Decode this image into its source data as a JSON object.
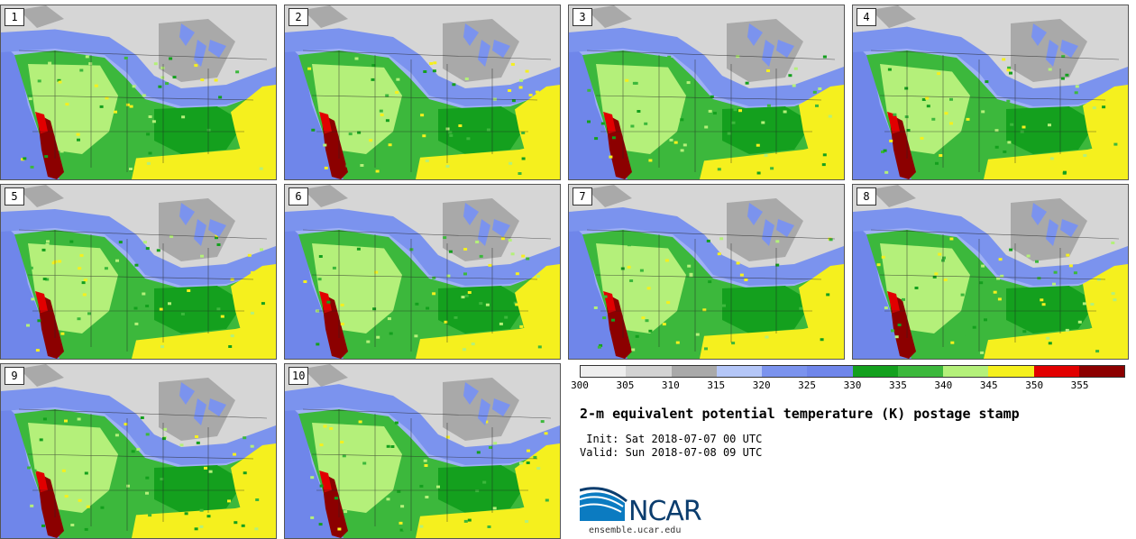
{
  "stamps": [
    {
      "label": "1"
    },
    {
      "label": "2"
    },
    {
      "label": "3"
    },
    {
      "label": "4"
    },
    {
      "label": "5"
    },
    {
      "label": "6"
    },
    {
      "label": "7"
    },
    {
      "label": "8"
    },
    {
      "label": "9"
    },
    {
      "label": "10"
    }
  ],
  "colorbar": {
    "colors": [
      "#eeeeee",
      "#d3d3d3",
      "#a9a9a9",
      "#b4c6f7",
      "#7b93ee",
      "#6f86ea",
      "#14a01e",
      "#3cb83c",
      "#b4f07a",
      "#f5f01e",
      "#e10000",
      "#8c0000"
    ],
    "ticks": [
      "300",
      "305",
      "310",
      "315",
      "320",
      "325",
      "330",
      "335",
      "340",
      "345",
      "350",
      "355"
    ]
  },
  "title": "2-m equivalent potential temperature (K) postage stamp",
  "init": " Init: Sat 2018-07-07 00 UTC",
  "valid": "Valid: Sun 2018-07-08 09 UTC",
  "logo": {
    "text": "NCAR",
    "url": "ensemble.ucar.edu"
  },
  "map_colors": {
    "ocean": "#6f86ea",
    "cool": "#9fb1f5",
    "gray": "#a9a9a9",
    "light": "#d6d6d6",
    "green_dark": "#14a01e",
    "green": "#3cb83c",
    "green_light": "#b4f07a",
    "yellow": "#f5f01e",
    "red": "#e10000",
    "dark_red": "#8c0000"
  }
}
